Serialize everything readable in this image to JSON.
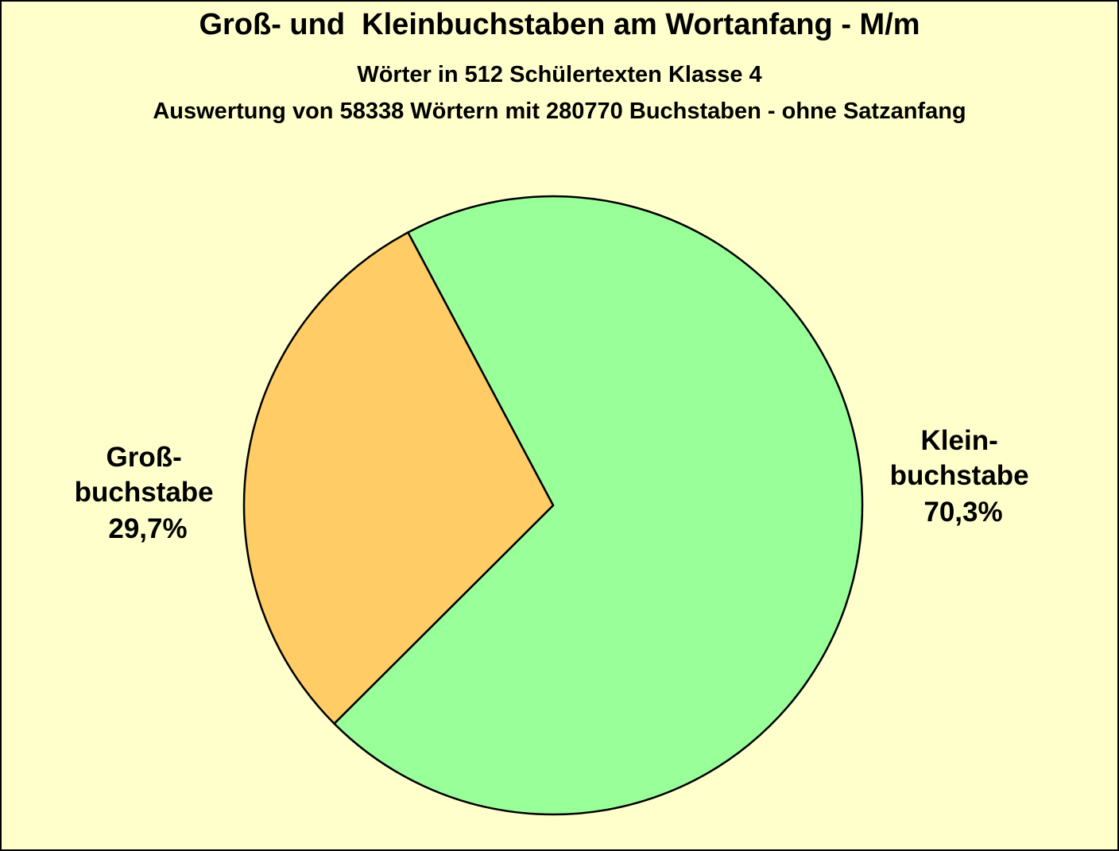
{
  "chart_data": {
    "type": "pie",
    "title": "Groß- und  Kleinbuchstaben am Wortanfang - M/m",
    "subtitle_1": "Wörter in 512 Schülertexten Klasse 4",
    "subtitle_2": "Auswertung von 58338 Wörtern mit 280770 Buchstaben - ohne Satzanfang",
    "slices": [
      {
        "value": 70.3,
        "label_lines": [
          "Klein-",
          "buchstabe",
          "70,3%"
        ],
        "color": "#99ff99"
      },
      {
        "value": 29.7,
        "label_lines": [
          "Groß-",
          "buchstabe",
          "29,7%"
        ],
        "color": "#ffcc66"
      }
    ]
  },
  "colors": {
    "background": "#ffffcc",
    "outline": "#000000"
  }
}
